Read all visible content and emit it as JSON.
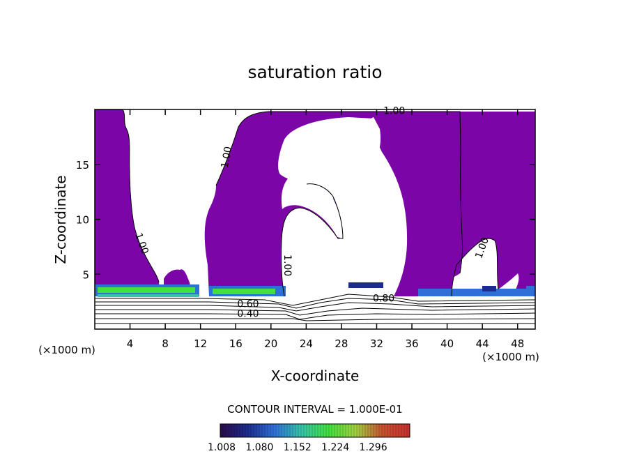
{
  "chart_data": {
    "type": "contour",
    "title": "saturation ratio",
    "xlabel": "X-coordinate",
    "ylabel": "Z-coordinate",
    "x_unit": "(×1000 m)",
    "x_unit_right": "(×1000 m)",
    "xlim": [
      0,
      50
    ],
    "ylim": [
      0,
      20
    ],
    "x_ticks": [
      4,
      8,
      12,
      16,
      20,
      24,
      28,
      32,
      36,
      40,
      44,
      48
    ],
    "y_ticks": [
      5,
      10,
      15
    ],
    "contour_interval_text": "CONTOUR INTERVAL = 1.000E-01",
    "contour_labels": [
      {
        "text": "1.00",
        "x": 34.0,
        "z": 19.6,
        "angle": 0
      },
      {
        "text": "1.00",
        "x": 15.3,
        "z": 15.6,
        "angle": -80
      },
      {
        "text": "1.00",
        "x": 5.0,
        "z": 7.7,
        "angle": 70
      },
      {
        "text": "1.00",
        "x": 21.5,
        "z": 5.8,
        "angle": 90
      },
      {
        "text": "1.00",
        "x": 44.3,
        "z": 7.3,
        "angle": -70
      },
      {
        "text": "0.80",
        "x": 32.8,
        "z": 2.5,
        "angle": 0
      },
      {
        "text": "0.60",
        "x": 17.4,
        "z": 2.0,
        "angle": 0
      },
      {
        "text": "0.40",
        "x": 17.4,
        "z": 1.1,
        "angle": 0
      }
    ],
    "colorbar": {
      "min": 1.008,
      "max": 1.296,
      "tick_labels": [
        "1.008",
        "1.080",
        "1.152",
        "1.224",
        "1.296"
      ],
      "colors": [
        "#2b0b4a",
        "#1c2c8c",
        "#2f6fd8",
        "#35c4a8",
        "#41e040",
        "#a0d040",
        "#c85030",
        "#c83030"
      ]
    },
    "fill_color": "#7b05a7",
    "accent_color": "#30e050"
  }
}
